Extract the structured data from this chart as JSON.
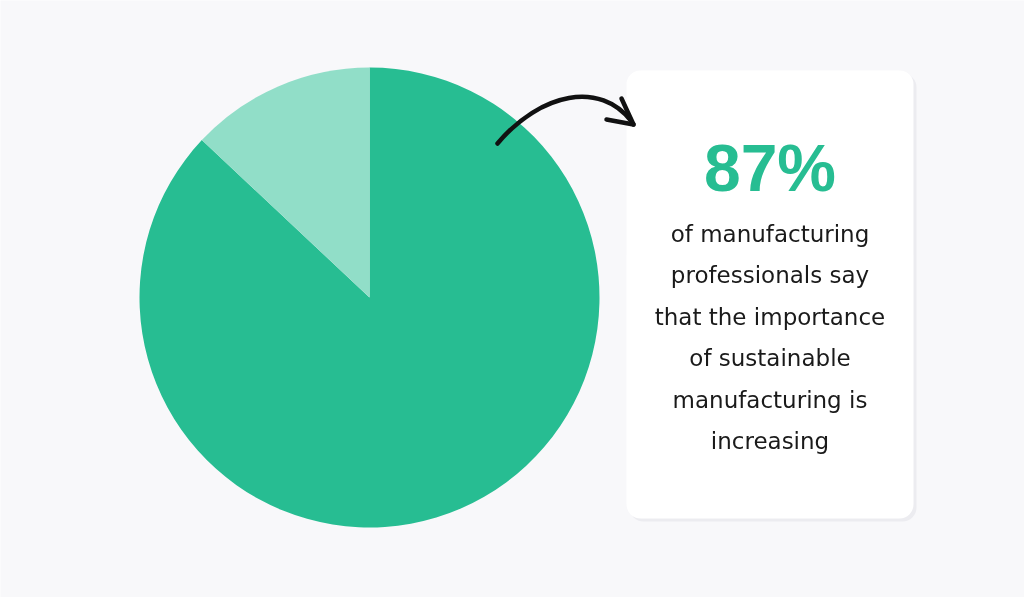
{
  "chart_data": {
    "type": "pie",
    "categories": [
      null,
      null
    ],
    "values": [
      87,
      13
    ],
    "colors": [
      "#27bd92",
      "#91dec8"
    ],
    "value_labels": [
      "87%",
      null
    ],
    "annotations": [
      "of manufacturing professionals say that the importance of sustainable manufacturing is increasing"
    ]
  }
}
